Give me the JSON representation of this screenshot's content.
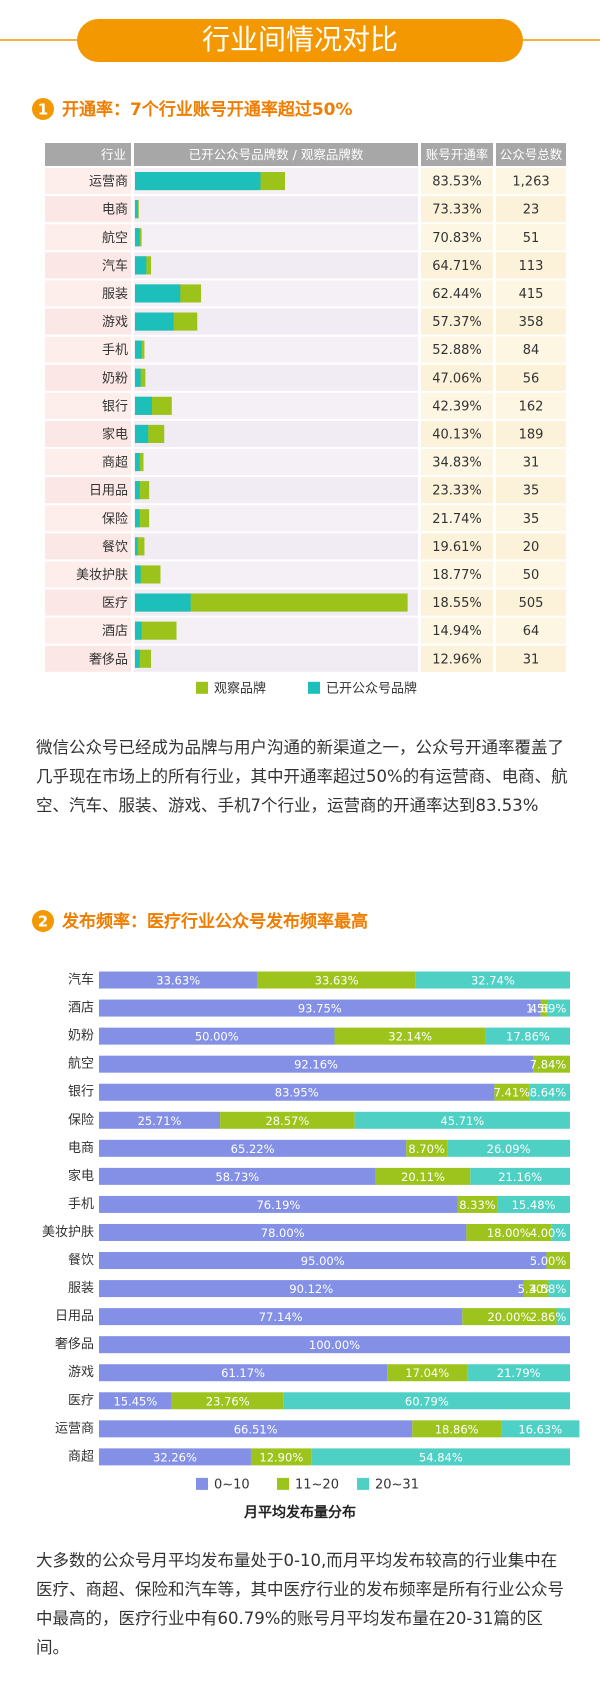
{
  "header": {
    "title": "行业间情况对比"
  },
  "sections": [
    {
      "number": "1",
      "title": "开通率：7个行业账号开通率超过50%",
      "paragraph": "微信公众号已经成为品牌与用户沟通的新渠道之一，公众号开通率覆盖了几乎现在市场上的所有行业，其中开通率超过50%的有运营商、电商、航空、汽车、服装、游戏、手机7个行业，运营商的开通率达到83.53%"
    },
    {
      "number": "2",
      "title": "发布频率：医疗行业公众号发布频率最高",
      "paragraph": "大多数的公众号月平均发布量处于0-10,而月平均发布较高的行业集中在医疗、商超、保险和汽车等，其中医疗行业的发布频率是所有行业公众号中最高的，医疗行业中有60.79%的账号月平均发布量在20-31篇的区间。"
    }
  ],
  "chart_data": [
    {
      "type": "bar-table",
      "columns": [
        "行业",
        "已开公众号品牌数 / 观察品牌数",
        "账号开通率",
        "公众号总数"
      ],
      "categories": [
        "运营商",
        "电商",
        "航空",
        "汽车",
        "服装",
        "游戏",
        "手机",
        "奶粉",
        "银行",
        "家电",
        "商超",
        "日用品",
        "保险",
        "餐饮",
        "美妆护肤",
        "医疗",
        "酒店",
        "奢侈品"
      ],
      "series": [
        {
          "name": "观察品牌",
          "color": "#9bc31a",
          "values": [
            159,
            4,
            7,
            17,
            70,
            66,
            10,
            11,
            39,
            31,
            9,
            15,
            15,
            10,
            27,
            289,
            44,
            17
          ]
        },
        {
          "name": "已开公众号品牌",
          "color": "#1dbfbb",
          "values": [
            133,
            3,
            5,
            12,
            48,
            41,
            7,
            6,
            18,
            14,
            5,
            5,
            5,
            3,
            6,
            59,
            7,
            5
          ]
        }
      ],
      "rates": [
        "83.53%",
        "73.33%",
        "70.83%",
        "64.71%",
        "62.44%",
        "57.37%",
        "52.88%",
        "47.06%",
        "42.39%",
        "40.13%",
        "34.83%",
        "23.33%",
        "21.74%",
        "19.61%",
        "18.77%",
        "18.55%",
        "14.94%",
        "12.96%"
      ],
      "totals": [
        "1,263",
        "23",
        "51",
        "113",
        "415",
        "358",
        "84",
        "56",
        "162",
        "189",
        "31",
        "35",
        "35",
        "20",
        "50",
        "505",
        "64",
        "31"
      ],
      "xlim": [
        0,
        300
      ]
    },
    {
      "type": "stacked-bar",
      "categories": [
        "汽车",
        "酒店",
        "奶粉",
        "航空",
        "银行",
        "保险",
        "电商",
        "家电",
        "手机",
        "美妆护肤",
        "餐饮",
        "服装",
        "日用品",
        "奢侈品",
        "游戏",
        "医疗",
        "运营商",
        "商超"
      ],
      "series": [
        {
          "name": "0~10",
          "color": "#8390e6",
          "values": [
            33.63,
            93.75,
            50.0,
            92.16,
            83.95,
            25.71,
            65.22,
            58.73,
            76.19,
            78.0,
            95.0,
            90.12,
            77.14,
            100.0,
            61.17,
            15.45,
            66.51,
            32.26
          ],
          "value_labels": [
            "33.63%",
            "93.75%",
            "50.00%",
            "92.16%",
            "83.95%",
            "25.71%",
            "65.22%",
            "58.73%",
            "76.19%",
            "78.00%",
            "95.00%",
            "90.12%",
            "77.14%",
            "100.00%",
            "61.17%",
            "15.45%",
            "66.51%",
            "32.26%"
          ]
        },
        {
          "name": "11~20",
          "color": "#9dc41c",
          "values": [
            33.63,
            1.56,
            32.14,
            7.84,
            7.41,
            28.57,
            8.7,
            20.11,
            8.33,
            18.0,
            5.0,
            5.3,
            20.0,
            0,
            17.04,
            23.76,
            18.86,
            12.9
          ],
          "value_labels": [
            "33.63%",
            "1.56%",
            "32.14%",
            "7.84%",
            "7.41%",
            "28.57%",
            "8.70%",
            "20.11%",
            "8.33%",
            "18.00%",
            "5.00%",
            "5.30%",
            "20.00%",
            null,
            "17.04%",
            "23.76%",
            "18.86%",
            "12.90%"
          ]
        },
        {
          "name": "20~31",
          "color": "#4fd0c5",
          "values": [
            32.74,
            4.69,
            17.86,
            0,
            8.64,
            45.71,
            26.09,
            21.16,
            15.48,
            4.0,
            0,
            4.58,
            2.86,
            0,
            21.79,
            60.79,
            16.63,
            54.84
          ],
          "value_labels": [
            "32.74%",
            "4.69%",
            "17.86%",
            null,
            "8.64%",
            "45.71%",
            "26.09%",
            "21.16%",
            "15.48%",
            "4.00%",
            null,
            "4.58%",
            "2.86%",
            null,
            "21.79%",
            "60.79%",
            "16.63%",
            "54.84%"
          ]
        }
      ],
      "xlim": [
        0,
        100
      ],
      "x_label": "月平均发布量分布"
    }
  ]
}
